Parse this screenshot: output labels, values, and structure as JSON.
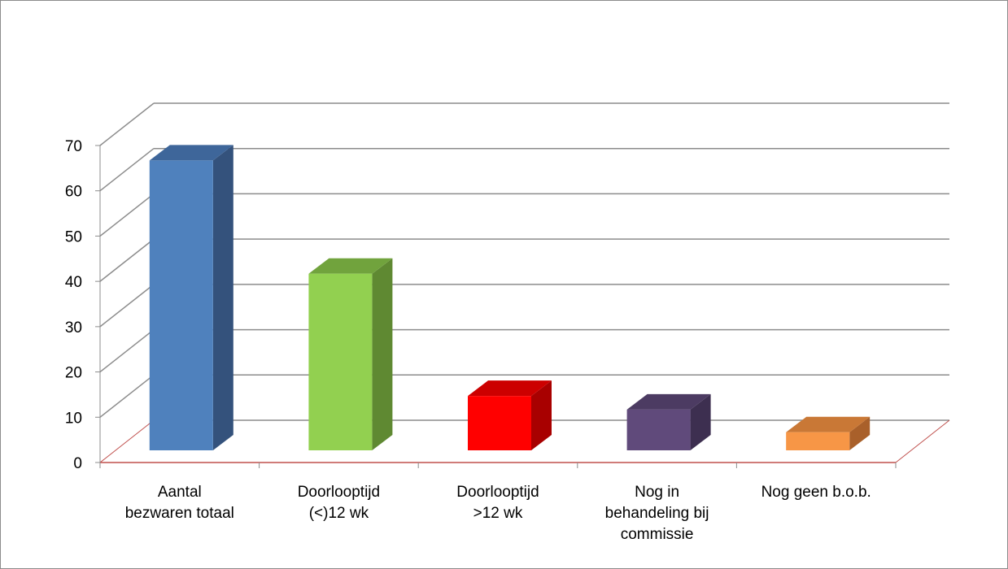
{
  "chart_data": {
    "type": "bar",
    "title": "",
    "xlabel": "",
    "ylabel": "",
    "ylim": [
      0,
      70
    ],
    "yticks": [
      0,
      10,
      20,
      30,
      40,
      50,
      60,
      70
    ],
    "grid": true,
    "categories": [
      [
        "Aantal",
        "bezwaren totaal"
      ],
      [
        "Doorlooptijd",
        "(<)12 wk"
      ],
      [
        "Doorlooptijd",
        ">12 wk"
      ],
      [
        "Nog in",
        "behandeling bij",
        "commissie"
      ],
      [
        "Nog geen b.o.b."
      ]
    ],
    "values": [
      64,
      39,
      12,
      9,
      4
    ],
    "colors": [
      {
        "front": "#4f81bd",
        "side": "#34527c",
        "top": "#3e669a"
      },
      {
        "front": "#92d050",
        "side": "#5f8932",
        "top": "#71a33d"
      },
      {
        "front": "#ff0000",
        "side": "#a80000",
        "top": "#cc0000"
      },
      {
        "front": "#604a7b",
        "side": "#3d2f50",
        "top": "#4c3b62"
      },
      {
        "front": "#f79646",
        "side": "#a9602a",
        "top": "#c97836"
      }
    ]
  }
}
